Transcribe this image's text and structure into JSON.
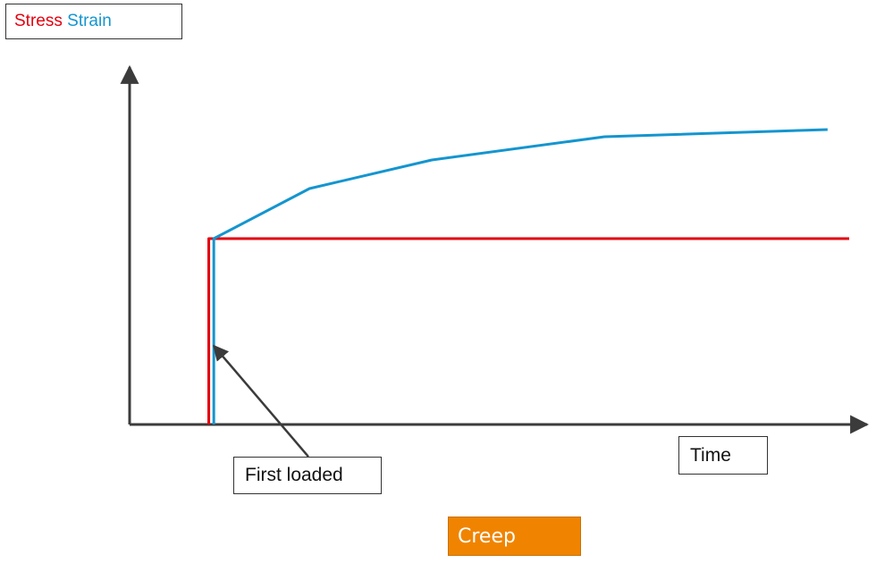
{
  "legend": {
    "stress_label": "Stress",
    "strain_label": "Strain"
  },
  "annotations": {
    "first_loaded": "First loaded",
    "time": "Time",
    "creep": "Creep"
  },
  "colors": {
    "stress": "#e3000f",
    "strain": "#1495cf",
    "axis": "#3b3b3b",
    "creep_fill": "#f08400"
  },
  "chart_data": {
    "type": "line",
    "title": "",
    "xlabel": "Time",
    "ylabel": "",
    "xlim": [
      0,
      100
    ],
    "ylim": [
      0,
      100
    ],
    "grid": false,
    "legend_placement": "top-left",
    "series": [
      {
        "name": "Stress",
        "color": "#e3000f",
        "points": [
          [
            11,
            0
          ],
          [
            11,
            52
          ],
          [
            100,
            52
          ]
        ]
      },
      {
        "name": "Strain",
        "color": "#1495cf",
        "points": [
          [
            11.7,
            0
          ],
          [
            11.7,
            52
          ],
          [
            25,
            66
          ],
          [
            42,
            74
          ],
          [
            66,
            80.5
          ],
          [
            97,
            82.5
          ]
        ]
      }
    ],
    "annotation": {
      "text": "First loaded",
      "arrow_to": [
        11.7,
        22
      ]
    }
  }
}
